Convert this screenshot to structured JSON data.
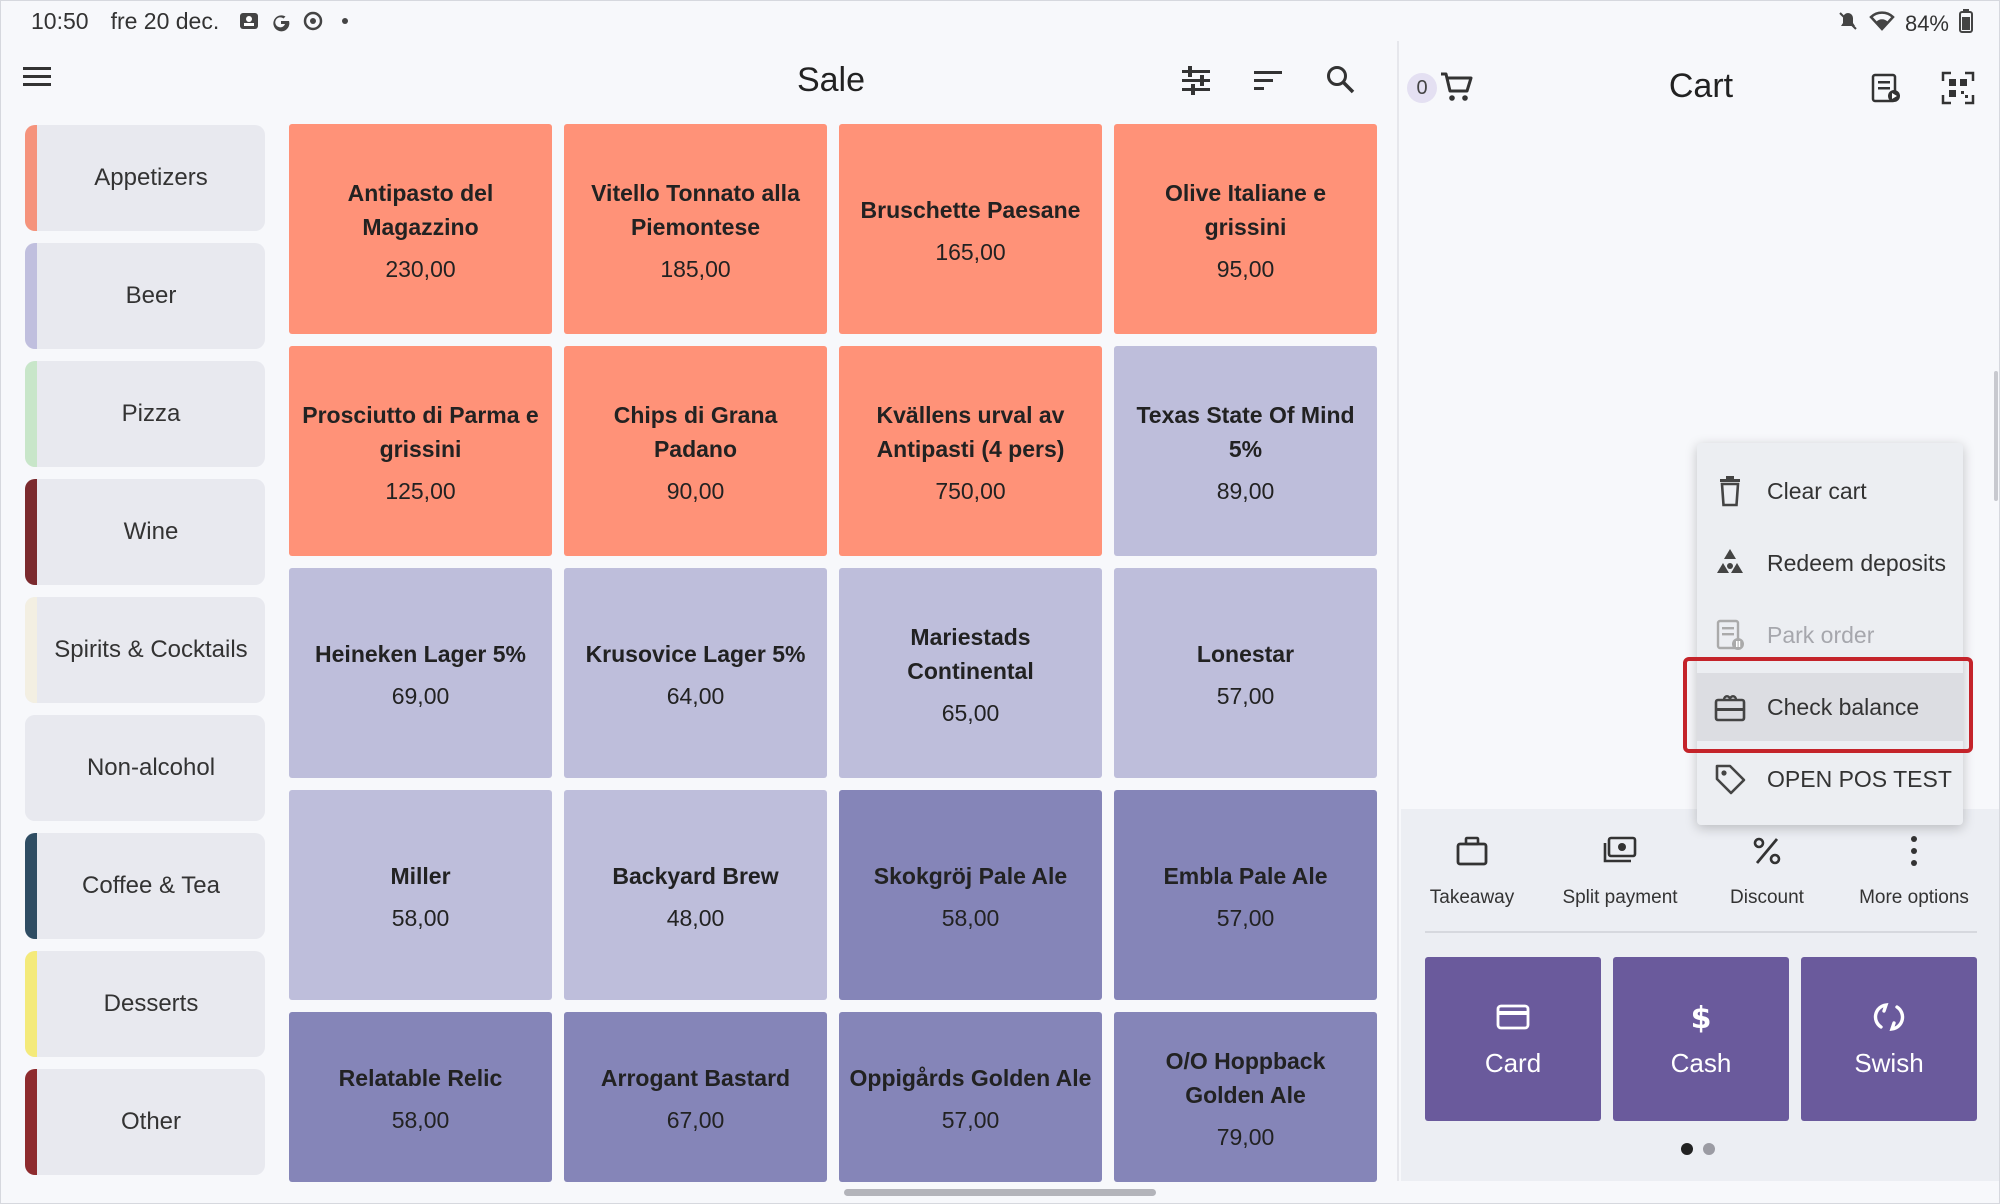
{
  "status_bar": {
    "time": "10:50",
    "date": "fre 20 dec.",
    "battery": "84%",
    "icons": [
      "notification-icon",
      "google-icon",
      "sync-icon",
      "dot-icon"
    ],
    "right_icons": [
      "mute-icon",
      "wifi-icon",
      "battery-icon"
    ]
  },
  "sale": {
    "title": "Sale",
    "toolbar_icons": [
      "filter-sliders-icon",
      "sort-icon",
      "search-icon"
    ]
  },
  "categories": [
    {
      "label": "Appetizers",
      "color": "#f5937c"
    },
    {
      "label": "Beer",
      "color": "#c0bfde"
    },
    {
      "label": "Pizza",
      "color": "#c8e6c9"
    },
    {
      "label": "Wine",
      "color": "#7b2a2e"
    },
    {
      "label": "Spirits & Cocktails",
      "color": "#f3efe2"
    },
    {
      "label": "Non-alcohol",
      "color": "#e8e9ef"
    },
    {
      "label": "Coffee & Tea",
      "color": "#2f4d63"
    },
    {
      "label": "Desserts",
      "color": "#f4ea7a"
    },
    {
      "label": "Other",
      "color": "#8e2b2e"
    }
  ],
  "products": [
    {
      "name": "Antipasto del Magazzino",
      "price": "230,00",
      "color": "#ff9278"
    },
    {
      "name": "Vitello Tonnato alla Piemontese",
      "price": "185,00",
      "color": "#ff9278"
    },
    {
      "name": "Bruschette Paesane",
      "price": "165,00",
      "color": "#ff9278"
    },
    {
      "name": "Olive Italiane e grissini",
      "price": "95,00",
      "color": "#ff9278"
    },
    {
      "name": "Prosciutto di Parma e grissini",
      "price": "125,00",
      "color": "#ff9278"
    },
    {
      "name": "Chips di Grana Padano",
      "price": "90,00",
      "color": "#ff9278"
    },
    {
      "name": "Kvällens urval av Antipasti (4 pers)",
      "price": "750,00",
      "color": "#ff9278"
    },
    {
      "name": "Texas State Of Mind 5%",
      "price": "89,00",
      "color": "#bebedb"
    },
    {
      "name": "Heineken Lager 5%",
      "price": "69,00",
      "color": "#bebedb"
    },
    {
      "name": "Krusovice Lager 5%",
      "price": "64,00",
      "color": "#bebedb"
    },
    {
      "name": "Mariestads Continental",
      "price": "65,00",
      "color": "#bebedb"
    },
    {
      "name": "Lonestar",
      "price": "57,00",
      "color": "#bebedb"
    },
    {
      "name": "Miller",
      "price": "58,00",
      "color": "#bebedb"
    },
    {
      "name": "Backyard Brew",
      "price": "48,00",
      "color": "#bebedb"
    },
    {
      "name": "Skokgröj Pale Ale",
      "price": "58,00",
      "color": "#8585b8"
    },
    {
      "name": "Embla Pale Ale",
      "price": "57,00",
      "color": "#8585b8"
    },
    {
      "name": "Relatable Relic",
      "price": "58,00",
      "color": "#8585b8"
    },
    {
      "name": "Arrogant Bastard",
      "price": "67,00",
      "color": "#8585b8"
    },
    {
      "name": "Oppigårds Golden Ale",
      "price": "57,00",
      "color": "#8585b8"
    },
    {
      "name": "O/O Hoppback Golden Ale",
      "price": "79,00",
      "color": "#8585b8"
    }
  ],
  "cart": {
    "title": "Cart",
    "count": "0",
    "header_icons": [
      "receipt-icon",
      "qr-scan-icon"
    ]
  },
  "context_menu": {
    "items": [
      {
        "label": "Clear cart",
        "icon": "trash-icon",
        "state": "enabled"
      },
      {
        "label": "Redeem deposits",
        "icon": "recycle-icon",
        "state": "enabled"
      },
      {
        "label": "Park order",
        "icon": "park-order-icon",
        "state": "disabled"
      },
      {
        "label": "Check balance",
        "icon": "gift-card-icon",
        "state": "highlighted"
      },
      {
        "label": "OPEN POS TEST",
        "icon": "tag-icon",
        "state": "enabled"
      }
    ],
    "highlight_color": "#c4232a"
  },
  "actions": [
    {
      "label": "Takeaway",
      "icon": "briefcase-icon"
    },
    {
      "label": "Split payment",
      "icon": "split-payment-icon"
    },
    {
      "label": "Discount",
      "icon": "percent-icon"
    },
    {
      "label": "More options",
      "icon": "more-vertical-icon"
    }
  ],
  "payments": [
    {
      "label": "Card",
      "icon": "credit-card-icon"
    },
    {
      "label": "Cash",
      "icon": "dollar-icon"
    },
    {
      "label": "Swish",
      "icon": "swish-icon"
    }
  ],
  "pager": {
    "pages": 2,
    "current": 1
  },
  "theme": {
    "payment_color": "#6a5a9c"
  }
}
